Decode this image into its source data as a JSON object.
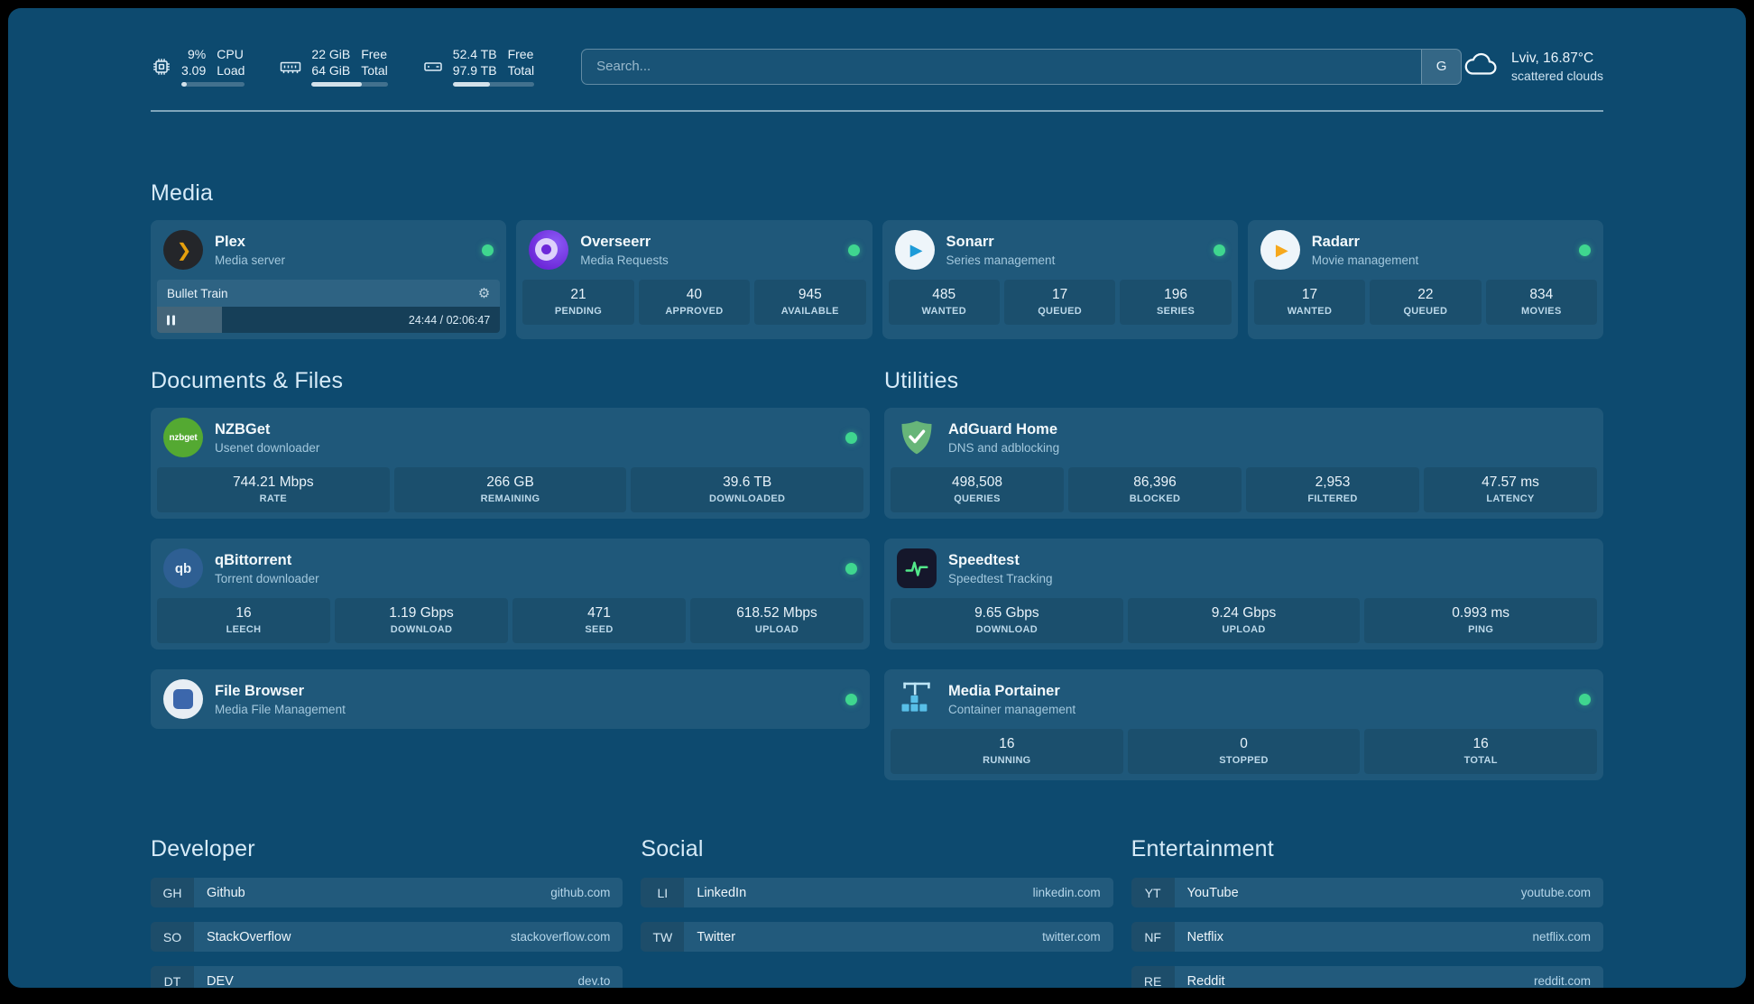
{
  "colors": {
    "page-bg": "#0d4a6f",
    "card-bg": "rgba(255,255,255,0.08)",
    "tile-bg": "rgba(0,0,0,0.10)",
    "row-bg": "rgba(255,255,255,0.09)",
    "abbr-bg": "rgba(0,0,0,0.14)",
    "status-green": "#3fd68f",
    "text-main": "#eaf4fb",
    "text-dim": "#a3c8dd"
  },
  "topbar": {
    "resources": [
      {
        "icon": "cpu-icon",
        "values": [
          "9%",
          "3.09"
        ],
        "labels": [
          "CPU",
          "Load"
        ],
        "percent": 9
      },
      {
        "icon": "memory-icon",
        "values": [
          "22 GiB",
          "64 GiB"
        ],
        "labels": [
          "Free",
          "Total"
        ],
        "percent": 66
      },
      {
        "icon": "disk-icon",
        "values": [
          "52.4 TB",
          "97.9 TB"
        ],
        "labels": [
          "Free",
          "Total"
        ],
        "percent": 46
      }
    ],
    "search": {
      "placeholder": "Search...",
      "provider_badge": "G"
    },
    "weather": {
      "location_temp": "Lviv, 16.87°C",
      "condition": "scattered clouds"
    }
  },
  "groups": [
    {
      "title": "Media",
      "services": [
        {
          "name": "Plex",
          "subtitle": "Media server",
          "icon": "plex-icon",
          "status": "online",
          "now_playing": {
            "title": "Bullet Train",
            "time": "24:44 / 02:06:47",
            "progress": 19
          }
        },
        {
          "name": "Overseerr",
          "subtitle": "Media Requests",
          "icon": "overseerr-icon",
          "status": "online",
          "stats": [
            {
              "value": "21",
              "label": "PENDING"
            },
            {
              "value": "40",
              "label": "APPROVED"
            },
            {
              "value": "945",
              "label": "AVAILABLE"
            }
          ]
        },
        {
          "name": "Sonarr",
          "subtitle": "Series management",
          "icon": "sonarr-icon",
          "status": "online",
          "stats": [
            {
              "value": "485",
              "label": "WANTED"
            },
            {
              "value": "17",
              "label": "QUEUED"
            },
            {
              "value": "196",
              "label": "SERIES"
            }
          ]
        },
        {
          "name": "Radarr",
          "subtitle": "Movie management",
          "icon": "radarr-icon",
          "status": "online",
          "stats": [
            {
              "value": "17",
              "label": "WANTED"
            },
            {
              "value": "22",
              "label": "QUEUED"
            },
            {
              "value": "834",
              "label": "MOVIES"
            }
          ]
        }
      ]
    },
    {
      "title": "Documents & Files",
      "services": [
        {
          "name": "NZBGet",
          "subtitle": "Usenet downloader",
          "icon": "nzbget-icon",
          "status": "online",
          "stats": [
            {
              "value": "744.21 Mbps",
              "label": "RATE"
            },
            {
              "value": "266 GB",
              "label": "REMAINING"
            },
            {
              "value": "39.6 TB",
              "label": "DOWNLOADED"
            }
          ]
        },
        {
          "name": "qBittorrent",
          "subtitle": "Torrent downloader",
          "icon": "qbittorrent-icon",
          "status": "online",
          "stats": [
            {
              "value": "16",
              "label": "LEECH"
            },
            {
              "value": "1.19 Gbps",
              "label": "DOWNLOAD"
            },
            {
              "value": "471",
              "label": "SEED"
            },
            {
              "value": "618.52 Mbps",
              "label": "UPLOAD"
            }
          ]
        },
        {
          "name": "File Browser",
          "subtitle": "Media File Management",
          "icon": "filebrowser-icon",
          "status": "online"
        }
      ]
    },
    {
      "title": "Utilities",
      "services": [
        {
          "name": "AdGuard Home",
          "subtitle": "DNS and adblocking",
          "icon": "adguard-icon",
          "status": "online",
          "stats": [
            {
              "value": "498,508",
              "label": "QUERIES"
            },
            {
              "value": "86,396",
              "label": "BLOCKED"
            },
            {
              "value": "2,953",
              "label": "FILTERED"
            },
            {
              "value": "47.57 ms",
              "label": "LATENCY"
            }
          ]
        },
        {
          "name": "Speedtest",
          "subtitle": "Speedtest Tracking",
          "icon": "speedtest-icon",
          "status": "online",
          "stats": [
            {
              "value": "9.65 Gbps",
              "label": "DOWNLOAD"
            },
            {
              "value": "9.24 Gbps",
              "label": "UPLOAD"
            },
            {
              "value": "0.993 ms",
              "label": "PING"
            }
          ]
        },
        {
          "name": "Media Portainer",
          "subtitle": "Container management",
          "icon": "portainer-icon",
          "status": "online",
          "stats": [
            {
              "value": "16",
              "label": "RUNNING"
            },
            {
              "value": "0",
              "label": "STOPPED"
            },
            {
              "value": "16",
              "label": "TOTAL"
            }
          ]
        }
      ]
    }
  ],
  "bookmarks": [
    {
      "title": "Developer",
      "items": [
        {
          "abbr": "GH",
          "name": "Github",
          "domain": "github.com"
        },
        {
          "abbr": "SO",
          "name": "StackOverflow",
          "domain": "stackoverflow.com"
        },
        {
          "abbr": "DT",
          "name": "DEV",
          "domain": "dev.to"
        }
      ]
    },
    {
      "title": "Social",
      "items": [
        {
          "abbr": "LI",
          "name": "LinkedIn",
          "domain": "linkedin.com"
        },
        {
          "abbr": "TW",
          "name": "Twitter",
          "domain": "twitter.com"
        }
      ]
    },
    {
      "title": "Entertainment",
      "items": [
        {
          "abbr": "YT",
          "name": "YouTube",
          "domain": "youtube.com"
        },
        {
          "abbr": "NF",
          "name": "Netflix",
          "domain": "netflix.com"
        },
        {
          "abbr": "RE",
          "name": "Reddit",
          "domain": "reddit.com"
        }
      ]
    }
  ]
}
